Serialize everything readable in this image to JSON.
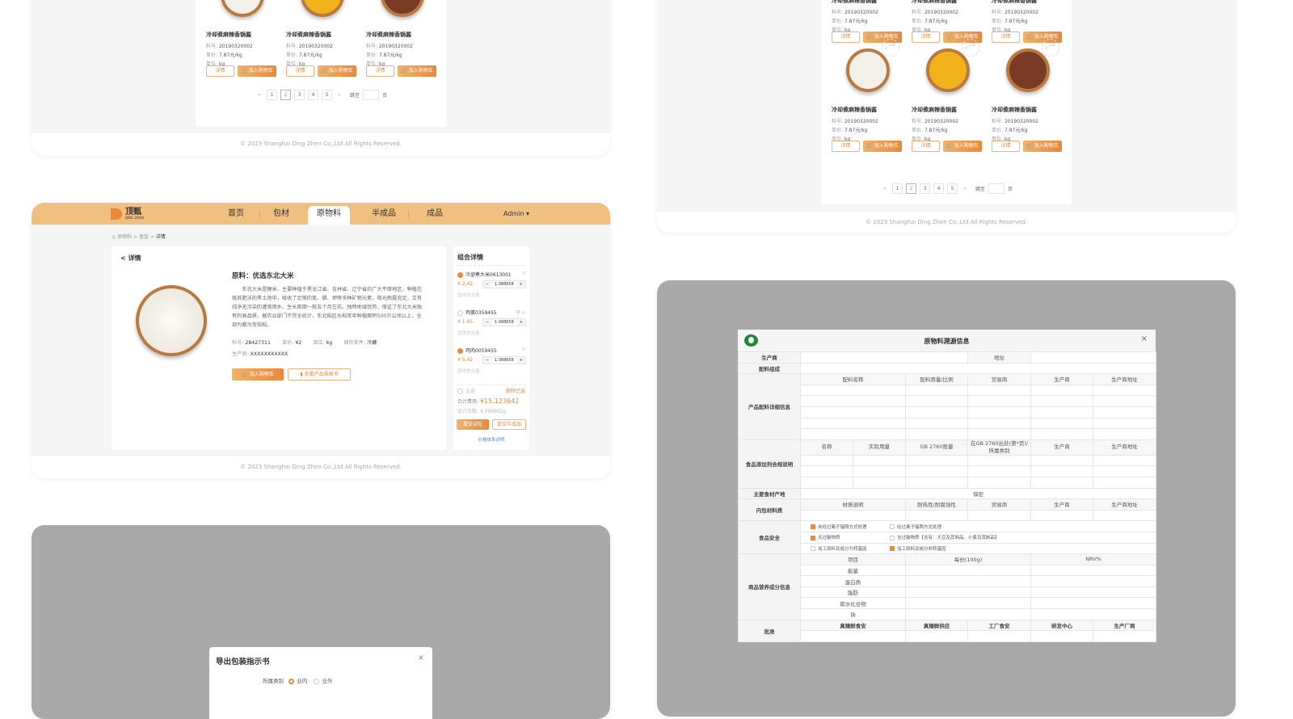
{
  "colors": {
    "accent": "#e8883a",
    "nav_bg": "#efc080",
    "overlay": "#a9a9a9",
    "trace_logo": "#1a8a2a"
  },
  "footer": "© 2023 Shanghai Ding Zhen Co.,Ltd All Rights Reserved.",
  "product_labels": {
    "code": "料号:",
    "price": "单价:",
    "unit": "单位:",
    "detail": "详情",
    "add_cart": "加入购物车",
    "stamp": "已下架"
  },
  "product": {
    "name": "冷却煮麻辣香锅酱",
    "code": "20190320002",
    "price": "7.87元/kg",
    "unit": "kg"
  },
  "grid_colors": [
    "#f3f0ea",
    "#f2b21c",
    "#7a3b26"
  ],
  "pagination": {
    "prev": "‹",
    "next": "›",
    "pages": [
      "1",
      "2",
      "3",
      "4",
      "5"
    ],
    "current": "2",
    "jump_label": "跳至",
    "page_suffix": "页"
  },
  "nav": {
    "logo": "顶甄",
    "logo_sub": "DING ZHEN",
    "items": [
      "首页",
      "包材",
      "原物料",
      "半成品",
      "成品"
    ],
    "active": "原物料",
    "user": "Admin ▾"
  },
  "breadcrumb": [
    "原物料",
    "盒饭",
    "详情"
  ],
  "detail": {
    "back": "详情",
    "title": "原料：优选东北大米",
    "description": "东北大米是粳米，主要种植于黑龙江省、吉林省、辽宁省的广大平原地区，种植在极其肥沃的黑土地中，吸收了足够的氮、磷、钾等多种矿物元素，阳光雨露充足，又有纯净无污染的灌溉用水，生长周期一般五个月左右。独特地域优势，保证了东北大米独有的高品质，据农业部门不完全统计，东北稻区水稻常年种植面积500万公顷以上，全部为都为常规稻。",
    "meta": [
      {
        "label": "料号:",
        "value": "28427311"
      },
      {
        "label": "单价:",
        "value": "¥2"
      },
      {
        "label": "单位:",
        "value": "kg"
      },
      {
        "label": "储存条件:",
        "value": "冷藏"
      }
    ],
    "producer_label": "生产商:",
    "producer": "XXXXXXXXXXX",
    "add_cart": "加入购物车",
    "spec": "查看产品规格书"
  },
  "combo": {
    "title": "组合详情",
    "items": [
      {
        "name": "冷卻煮大米0613001",
        "price": "¥ 2.42",
        "qty": "1.088658",
        "solid": "固体物含量: -",
        "checked": true,
        "flag": ""
      },
      {
        "name": "鸡蛋0359455",
        "price": "¥ 1.65",
        "qty": "1.088658",
        "solid": "固体物含量: -",
        "checked": false,
        "flag": "干"
      },
      {
        "name": "鸡肉0059455",
        "price": "¥ 5.42",
        "qty": "1.088658",
        "solid": "固体物含量: -",
        "checked": true,
        "flag": ""
      }
    ],
    "select_all": "全选",
    "delete_selected": "删除已选",
    "total_label": "合计费用:",
    "total": "¥15.123642",
    "weight_label": "合计克数:",
    "weight": "4.098802g",
    "submit_trial": "提交试吃",
    "submit_semi": "提交半成品",
    "price_note": "价格体系说明"
  },
  "export_modal": {
    "title": "导出包装指示书",
    "close": "×",
    "category_label": "所属类别",
    "options": [
      "业内",
      "业外"
    ],
    "selected": "业内"
  },
  "trace": {
    "title": "原物料溯源信息",
    "close": "×",
    "producer": "生产商",
    "address": "地址",
    "composition": "配料组成",
    "ingredient_detail": "产品配料详细信息",
    "ingredient_headers": [
      "配料名称",
      "配料用量/比例",
      "贸易商",
      "生产商",
      "生产商地址"
    ],
    "additive": "食品添加剂合规说明",
    "additive_headers": [
      "名称",
      "实际用量",
      "GB 2760限量",
      "在GB 2760出处(第*页)/所属类别",
      "生产商",
      "生产商地址"
    ],
    "origin": "主要食材产地",
    "origin_value": "保密",
    "packaging": "内包材料质",
    "packaging_headers": [
      "材质说明",
      "耐热性/耐腐蚀性",
      "贸易商",
      "生产商",
      "生产商地址"
    ],
    "safety": "食品安全",
    "safety_rows": [
      [
        {
          "text": "未经过离子辐照方式处理",
          "checked": true
        },
        {
          "text": "经过离子辐照方式处理",
          "checked": false
        }
      ],
      [
        {
          "text": "无过敏物质",
          "checked": true
        },
        {
          "text": "含过敏物质【含有：大豆及其制品、小麦及其制品】",
          "checked": false
        }
      ],
      [
        {
          "text": "加工原料及成分为转基因",
          "checked": false
        },
        {
          "text": "加工原料及成分非转基因",
          "checked": true
        }
      ]
    ],
    "nutrition": "商品营养成分信息",
    "nutrition_headers": [
      "项目",
      "每份(100g)",
      "NRV%"
    ],
    "nutrition_items": [
      "能量",
      "蛋白质",
      "脂肪",
      "碳水化合物",
      "钠"
    ],
    "approval": "批准",
    "approval_headers": [
      "真臻鲜食安",
      "真臻鲜供应",
      "工厂食安",
      "研发中心",
      "生产厂商"
    ]
  }
}
